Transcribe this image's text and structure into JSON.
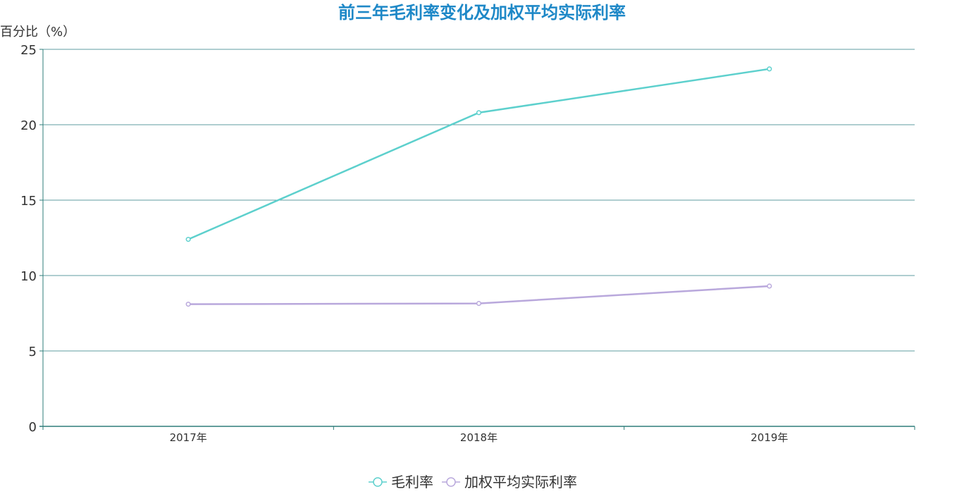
{
  "chart_data": {
    "type": "line",
    "title": "前三年毛利率变化及加权平均实际利率",
    "ylabel": "百分比（%）",
    "xlabel": "",
    "categories": [
      "2017年",
      "2018年",
      "2019年"
    ],
    "ylim": [
      0,
      25
    ],
    "yticks": [
      "0",
      "5",
      "10",
      "15",
      "20",
      "25"
    ],
    "grid": true,
    "legend_position": "bottom-center",
    "series": [
      {
        "name": "毛利率",
        "values": [
          12.4,
          20.8,
          23.7
        ],
        "color": "#5dd0cd"
      },
      {
        "name": "加权平均实际利率",
        "values": [
          8.1,
          8.15,
          9.3
        ],
        "color": "#b9a8dc"
      }
    ]
  },
  "colors": {
    "title": "#1e88c7",
    "grid": "#5f9ea0",
    "axis": "#2e7d7a"
  }
}
